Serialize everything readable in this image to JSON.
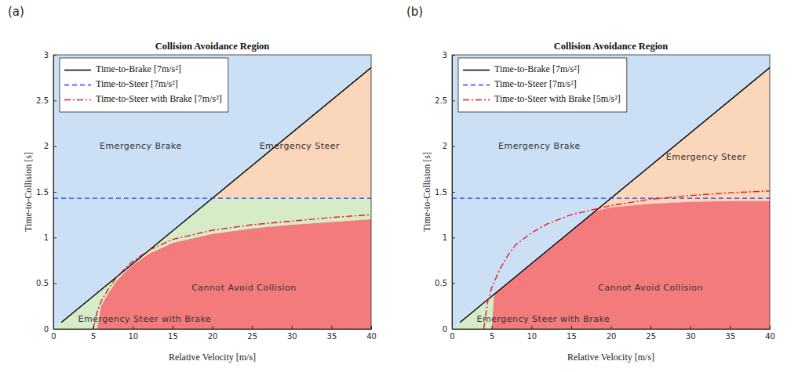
{
  "chart_data": [
    {
      "type": "line",
      "panel_label": "(a)",
      "title": "Collision Avoidance Region",
      "x_label": "Relative Velocity [m/s]",
      "y_label": "Time-to-Collision  [s]",
      "xlim": [
        0,
        40
      ],
      "ylim": [
        0,
        3
      ],
      "xticks": [
        0,
        5,
        10,
        15,
        20,
        25,
        30,
        35,
        40
      ],
      "yticks": [
        0,
        0.5,
        1,
        1.5,
        2,
        2.5,
        3
      ],
      "legend": "upper left",
      "regions": [
        {
          "name": "Emergency Brake",
          "color": "#cce0f5",
          "x": [
            0,
            40
          ],
          "values": [
            3,
            3
          ],
          "base": [
            0,
            2.86
          ],
          "label_at": [
            11,
            2.0
          ]
        },
        {
          "name": "Emergency Steer",
          "color": "#fad6ba",
          "x": [
            20,
            40
          ],
          "values": [
            1.43,
            2.86
          ],
          "base": [
            1.43,
            1.43
          ],
          "label_at": [
            31,
            2.0
          ]
        },
        {
          "name": "Emergency Steer with Brake",
          "color": "#d6ecc8",
          "x": [
            0,
            5.5,
            6,
            7,
            8,
            9,
            10,
            12,
            15,
            20,
            25,
            30,
            35,
            40
          ],
          "values": [
            0,
            0.39,
            0.43,
            0.5,
            0.57,
            0.64,
            0.71,
            0.86,
            1.07,
            1.43,
            1.43,
            1.43,
            1.43,
            1.43
          ],
          "base": [
            0,
            0,
            0.25,
            0.4,
            0.53,
            0.62,
            0.7,
            0.82,
            0.94,
            1.04,
            1.1,
            1.14,
            1.17,
            1.2
          ],
          "label_at": [
            11.5,
            0.1
          ]
        },
        {
          "name": "Cannot Avoid Collision",
          "color": "#f47b7b",
          "x": [
            5.5,
            6,
            7,
            8,
            9,
            10,
            12,
            15,
            20,
            25,
            30,
            35,
            40
          ],
          "values": [
            0,
            0.25,
            0.4,
            0.53,
            0.62,
            0.7,
            0.82,
            0.94,
            1.04,
            1.1,
            1.14,
            1.17,
            1.2
          ],
          "base": [
            0,
            0,
            0,
            0,
            0,
            0,
            0,
            0,
            0,
            0,
            0,
            0,
            0
          ],
          "label_at": [
            24,
            0.45
          ]
        }
      ],
      "series": [
        {
          "name": "Time-to-Brake [7m/s²]",
          "color": "#000000",
          "line_style": "solid",
          "x": [
            1,
            40
          ],
          "values": [
            0.07,
            2.86
          ]
        },
        {
          "name": "Time-to-Steer [7m/s²]",
          "color": "#2040ff",
          "line_style": "dashed",
          "x": [
            0,
            40
          ],
          "values": [
            1.43,
            1.43
          ]
        },
        {
          "name": "Time-to-Steer with Brake [7m/s²]",
          "color": "#e8191f",
          "line_style": "dashdot",
          "x": [
            5,
            5.5,
            6,
            7,
            8,
            9,
            10,
            12,
            15,
            20,
            25,
            30,
            35,
            40
          ],
          "values": [
            0,
            0.18,
            0.3,
            0.45,
            0.57,
            0.66,
            0.74,
            0.86,
            0.98,
            1.08,
            1.14,
            1.18,
            1.22,
            1.25
          ]
        }
      ]
    },
    {
      "type": "line",
      "panel_label": "(b)",
      "title": "Collision Avoidance Region",
      "x_label": "Relative Velocity [m/s]",
      "y_label": "Time-to-Collision  [s]",
      "xlim": [
        0,
        40
      ],
      "ylim": [
        0,
        3
      ],
      "xticks": [
        0,
        5,
        10,
        15,
        20,
        25,
        30,
        35,
        40
      ],
      "yticks": [
        0,
        0.5,
        1,
        1.5,
        2,
        2.5,
        3
      ],
      "legend": "upper left",
      "regions": [
        {
          "name": "Emergency Brake",
          "color": "#cce0f5",
          "x": [
            0,
            40
          ],
          "values": [
            3,
            3
          ],
          "base": [
            0,
            2.86
          ],
          "label_at": [
            11,
            2.0
          ]
        },
        {
          "name": "Emergency Steer",
          "color": "#fad6ba",
          "x": [
            18,
            20,
            25,
            30,
            35,
            40
          ],
          "values": [
            1.29,
            1.43,
            1.79,
            2.14,
            2.5,
            2.86
          ],
          "base": [
            1.29,
            1.33,
            1.37,
            1.39,
            1.4,
            1.4
          ],
          "label_at": [
            32,
            1.88
          ]
        },
        {
          "name": "Emergency Steer with Brake",
          "color": "#d6ecc8",
          "x": [
            0,
            4,
            5,
            5.3
          ],
          "values": [
            0,
            0.29,
            0.36,
            0.38
          ],
          "base": [
            0,
            0,
            0,
            0.38
          ],
          "label_at": [
            11.5,
            0.1
          ]
        },
        {
          "name": "Cannot Avoid Collision",
          "color": "#f47b7b",
          "x": [
            5,
            5.3,
            10,
            15,
            18,
            20,
            25,
            30,
            35,
            40
          ],
          "values": [
            0,
            0.38,
            0.71,
            1.07,
            1.29,
            1.33,
            1.37,
            1.39,
            1.4,
            1.4
          ],
          "base": [
            0,
            0,
            0,
            0,
            0,
            0,
            0,
            0,
            0,
            0
          ],
          "label_at": [
            25,
            0.45
          ]
        }
      ],
      "series": [
        {
          "name": "Time-to-Brake [7m/s²]",
          "color": "#000000",
          "line_style": "solid",
          "x": [
            1,
            40
          ],
          "values": [
            0.07,
            2.86
          ]
        },
        {
          "name": "Time-to-Steer [7m/s²]",
          "color": "#2040ff",
          "line_style": "dashed",
          "x": [
            0,
            40
          ],
          "values": [
            1.43,
            1.43
          ]
        },
        {
          "name": "Time-to-Steer with Brake [5m/s²]",
          "color": "#e8191f",
          "line_style": "dashdot",
          "x": [
            4,
            4.5,
            5,
            6,
            7,
            8,
            10,
            12,
            15,
            18,
            20,
            25,
            30,
            35,
            40
          ],
          "values": [
            0,
            0.3,
            0.45,
            0.65,
            0.8,
            0.92,
            1.05,
            1.15,
            1.25,
            1.31,
            1.35,
            1.42,
            1.46,
            1.49,
            1.51
          ]
        }
      ]
    }
  ]
}
